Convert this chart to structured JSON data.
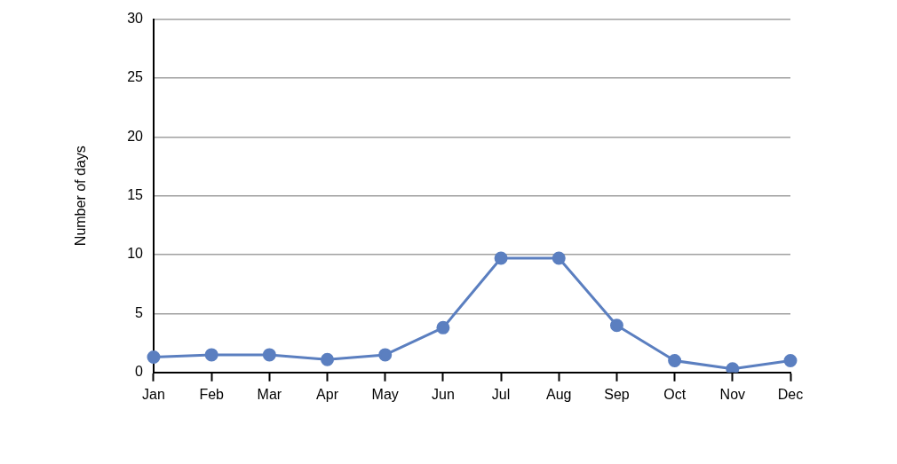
{
  "chart_data": {
    "type": "line",
    "ylabel": "Number of days",
    "categories": [
      "Jan",
      "Feb",
      "Mar",
      "Apr",
      "May",
      "Jun",
      "Jul",
      "Aug",
      "Sep",
      "Oct",
      "Nov",
      "Dec"
    ],
    "series": [
      {
        "color": "#5b7fc0",
        "values": [
          1.3,
          1.5,
          1.5,
          1.1,
          1.5,
          3.8,
          9.7,
          9.7,
          4.0,
          1.0,
          0.3,
          1.0
        ]
      }
    ],
    "ylim": [
      0,
      30
    ],
    "yticks": [
      0,
      5,
      10,
      15,
      20,
      25,
      30
    ],
    "grid": "y",
    "legend": false,
    "marker": "circle",
    "line_style": "solid"
  }
}
